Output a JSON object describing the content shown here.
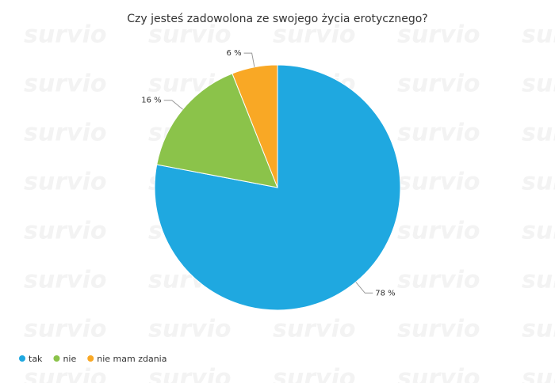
{
  "chart_data": {
    "type": "pie",
    "title": "Czy jesteś zadowolona ze swojego życia erotycznego?",
    "categories": [
      "tak",
      "nie",
      "nie mam zdania"
    ],
    "values": [
      78,
      16,
      6
    ],
    "value_labels": [
      "78 %",
      "16 %",
      "6 %"
    ],
    "colors": [
      "#1fa8e0",
      "#8bc34a",
      "#f9a825"
    ],
    "legend": "bottom-left"
  },
  "watermark": "survio"
}
